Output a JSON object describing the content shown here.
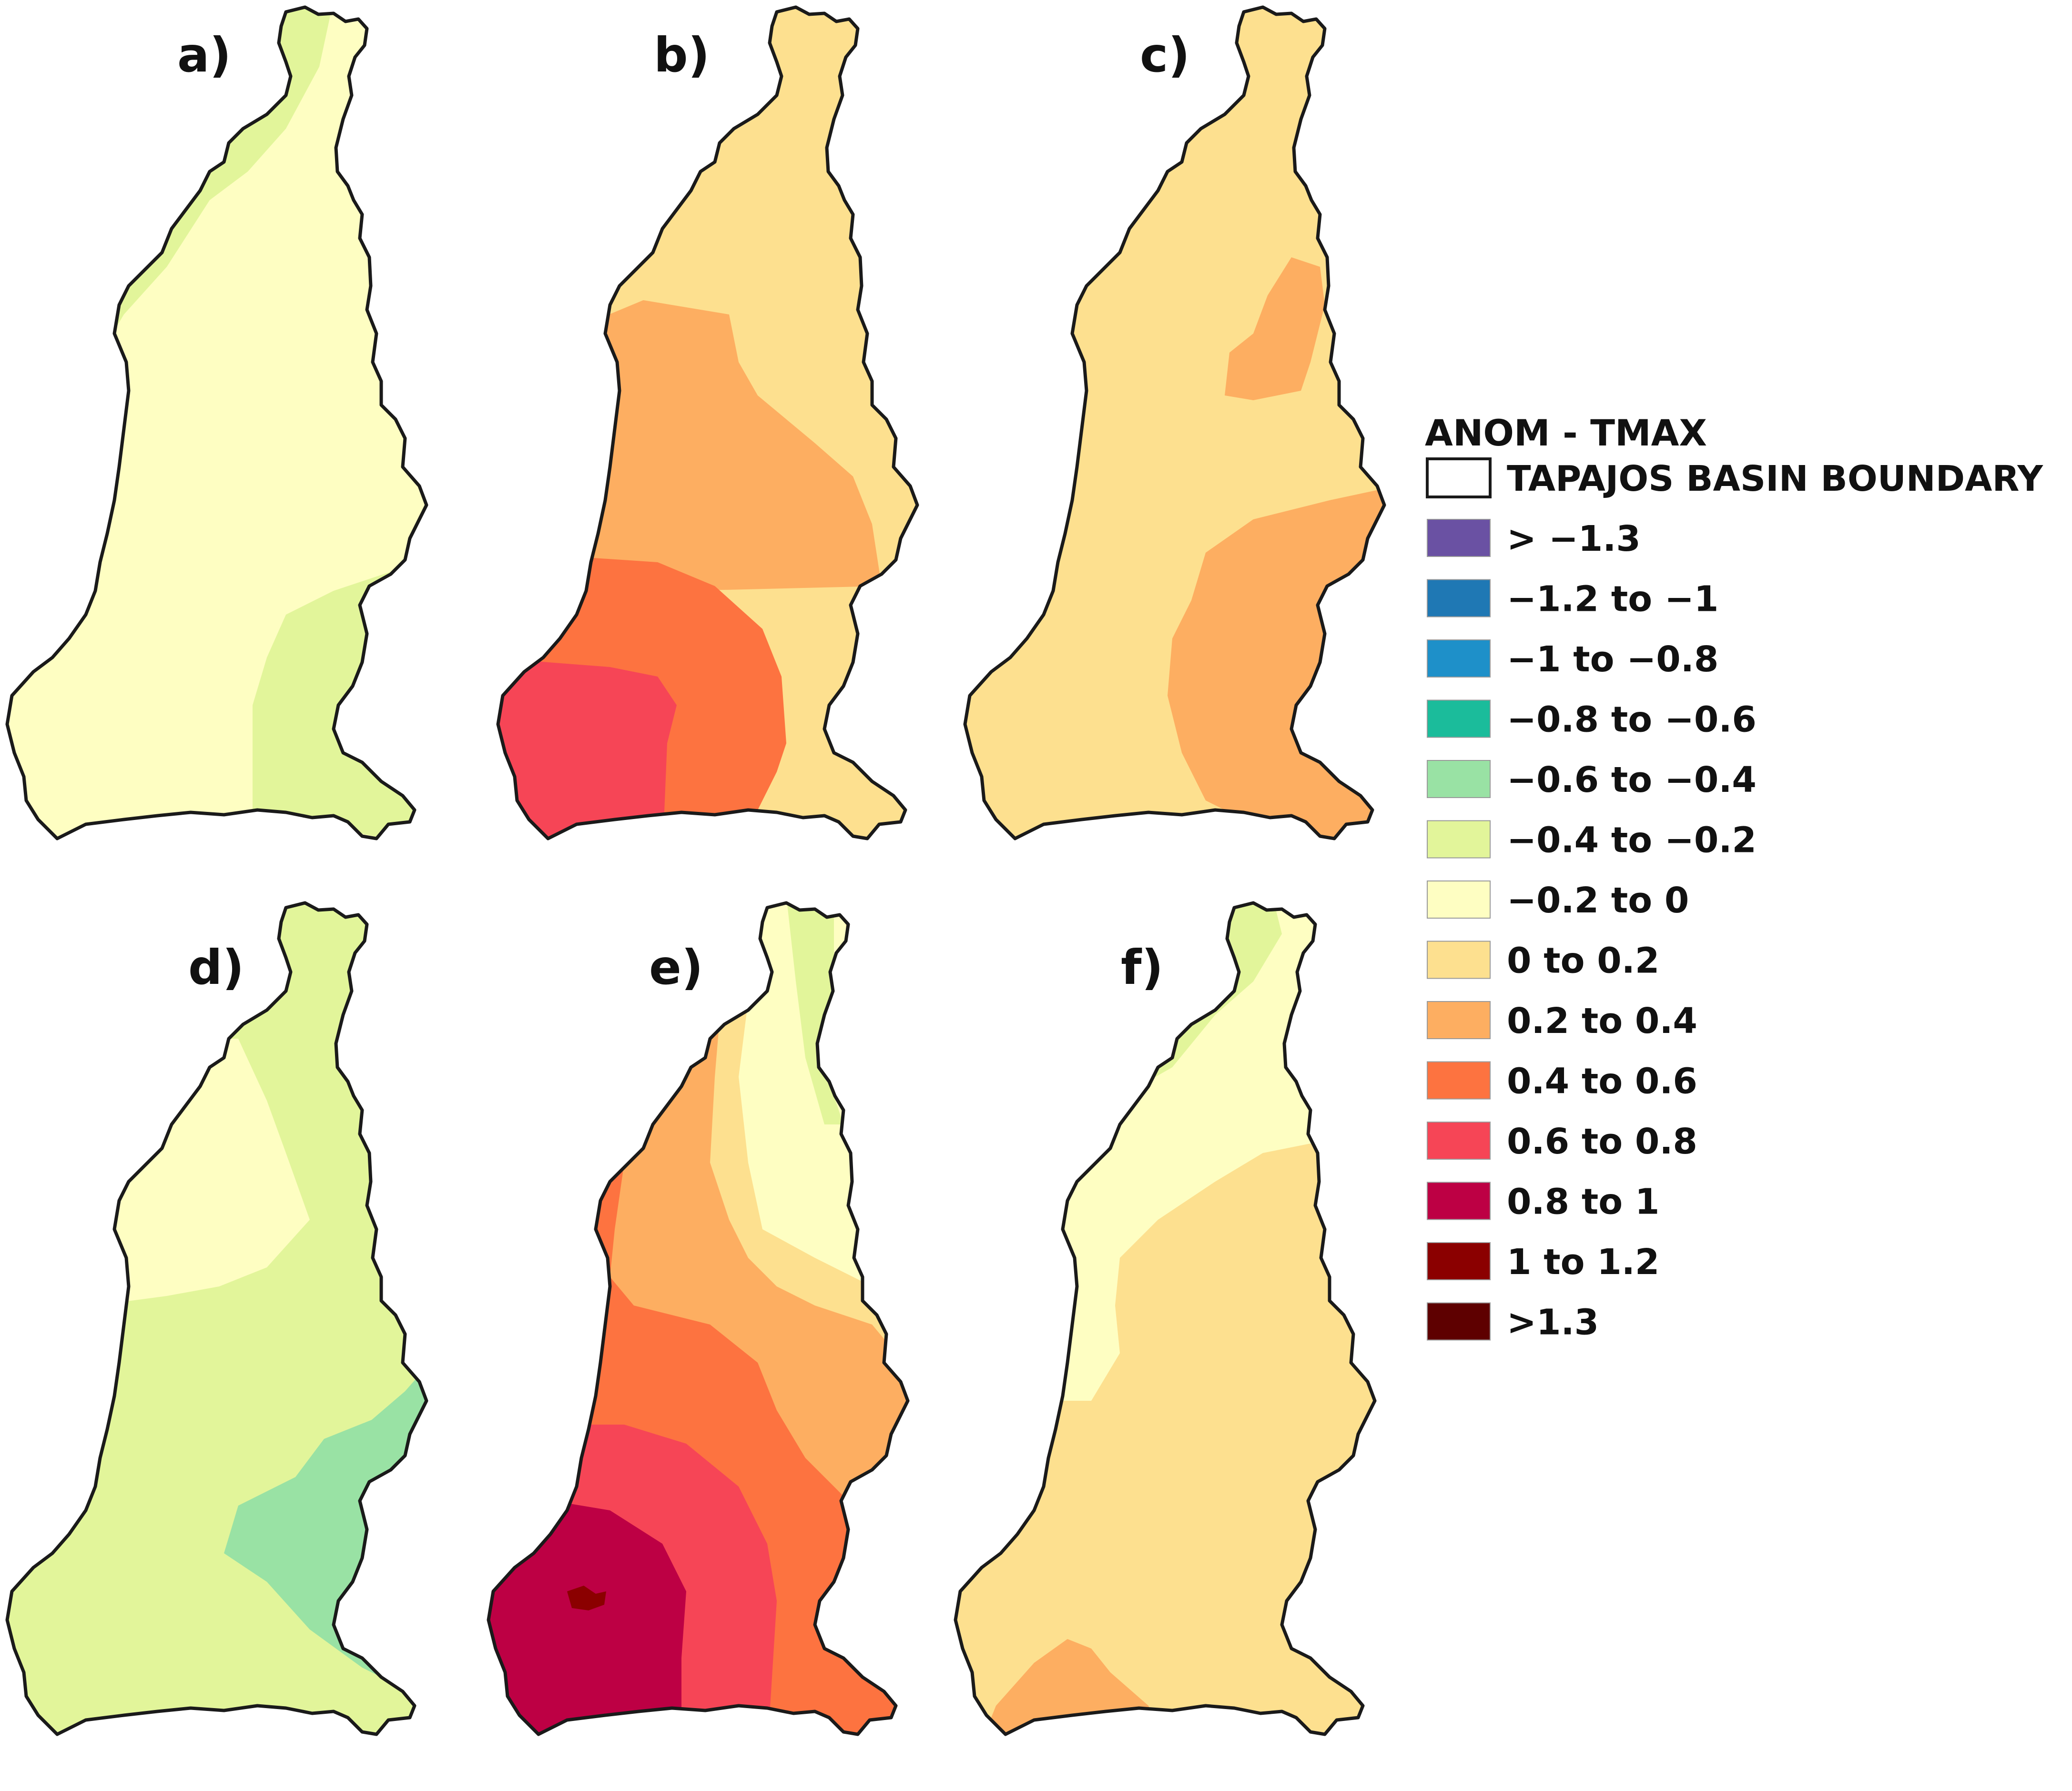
{
  "legend": {
    "title": "ANOM - TMAX",
    "boundary_label": "TAPAJOS BASIN BOUNDARY",
    "classes": [
      {
        "label": "> −1.3",
        "color": "#6a51a3"
      },
      {
        "label": "−1.2 to −1",
        "color": "#1f78b4"
      },
      {
        "label": "−1 to −0.8",
        "color": "#1e90c9"
      },
      {
        "label": "−0.8 to −0.6",
        "color": "#1bbc9b"
      },
      {
        "label": "−0.6 to −0.4",
        "color": "#99e2a4"
      },
      {
        "label": "−0.4 to −0.2",
        "color": "#e2f59a"
      },
      {
        "label": "−0.2 to 0",
        "color": "#fefec2"
      },
      {
        "label": "0 to 0.2",
        "color": "#fde08f"
      },
      {
        "label": "0.2 to 0.4",
        "color": "#fdae61"
      },
      {
        "label": "0.4 to 0.6",
        "color": "#fd7340"
      },
      {
        "label": "0.6 to 0.8",
        "color": "#f64556"
      },
      {
        "label": "0.8 to 1",
        "color": "#bd0044"
      },
      {
        "label": "1 to 1.2",
        "color": "#8b0000"
      },
      {
        "label": ">1.3",
        "color": "#5e0000"
      }
    ]
  },
  "panels": [
    {
      "label": "a)",
      "base_class": 6,
      "zones": [
        {
          "class": 5,
          "area": "north-west"
        },
        {
          "class": 5,
          "area": "south-east"
        }
      ]
    },
    {
      "label": "b)",
      "base_class": 7,
      "zones": [
        {
          "class": 8,
          "area": "central"
        },
        {
          "class": 9,
          "area": "south"
        },
        {
          "class": 10,
          "area": "south-west"
        }
      ]
    },
    {
      "label": "c)",
      "base_class": 7,
      "zones": [
        {
          "class": 8,
          "area": "north-east"
        },
        {
          "class": 8,
          "area": "south-east"
        }
      ]
    },
    {
      "label": "d)",
      "base_class": 5,
      "zones": [
        {
          "class": 6,
          "area": "north-west"
        },
        {
          "class": 4,
          "area": "south-east"
        }
      ]
    },
    {
      "label": "e)",
      "base_class": 7,
      "zones": [
        {
          "class": 6,
          "area": "north-east"
        },
        {
          "class": 5,
          "area": "north-east edge"
        },
        {
          "class": 8,
          "area": "central"
        },
        {
          "class": 9,
          "area": "west and south"
        },
        {
          "class": 10,
          "area": "south-west"
        },
        {
          "class": 11,
          "area": "south-west"
        },
        {
          "class": 12,
          "area": "south-west core"
        }
      ]
    },
    {
      "label": "f)",
      "base_class": 7,
      "zones": [
        {
          "class": 6,
          "area": "north and west"
        },
        {
          "class": 5,
          "area": "north-west"
        },
        {
          "class": 8,
          "area": "south-west"
        }
      ]
    }
  ]
}
